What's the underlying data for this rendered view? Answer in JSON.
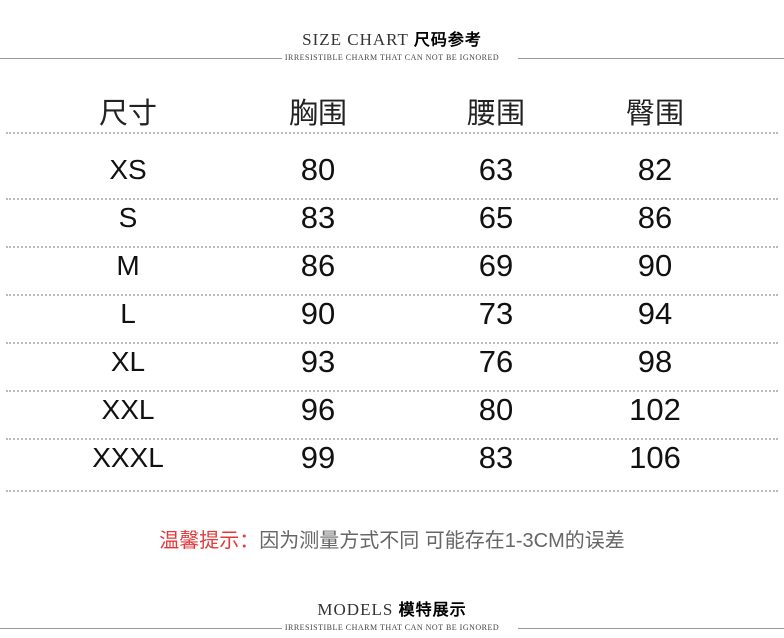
{
  "header": {
    "title_en": "SIZE CHART",
    "title_cn": "尺码参考",
    "subtitle": "IRRESISTIBLE CHARM THAT CAN NOT BE IGNORED"
  },
  "table": {
    "columns": [
      "尺寸",
      "胸围",
      "腰围",
      "臀围"
    ],
    "rows": [
      [
        "XS",
        "80",
        "63",
        "82"
      ],
      [
        "S",
        "83",
        "65",
        "86"
      ],
      [
        "M",
        "86",
        "69",
        "90"
      ],
      [
        "L",
        "90",
        "73",
        "94"
      ],
      [
        "XL",
        "93",
        "76",
        "98"
      ],
      [
        "XXL",
        "96",
        "80",
        "102"
      ],
      [
        "XXXL",
        "99",
        "83",
        "106"
      ]
    ]
  },
  "note": {
    "label": "温馨提示：",
    "text": "因为测量方式不同 可能存在1-3CM的误差"
  },
  "footer": {
    "title_en": "MODELS",
    "title_cn": "模特展示",
    "subtitle": "IRRESISTIBLE CHARM THAT CAN NOT BE IGNORED"
  },
  "colors": {
    "note_label": "#e23a3a",
    "note_text": "#666666"
  }
}
